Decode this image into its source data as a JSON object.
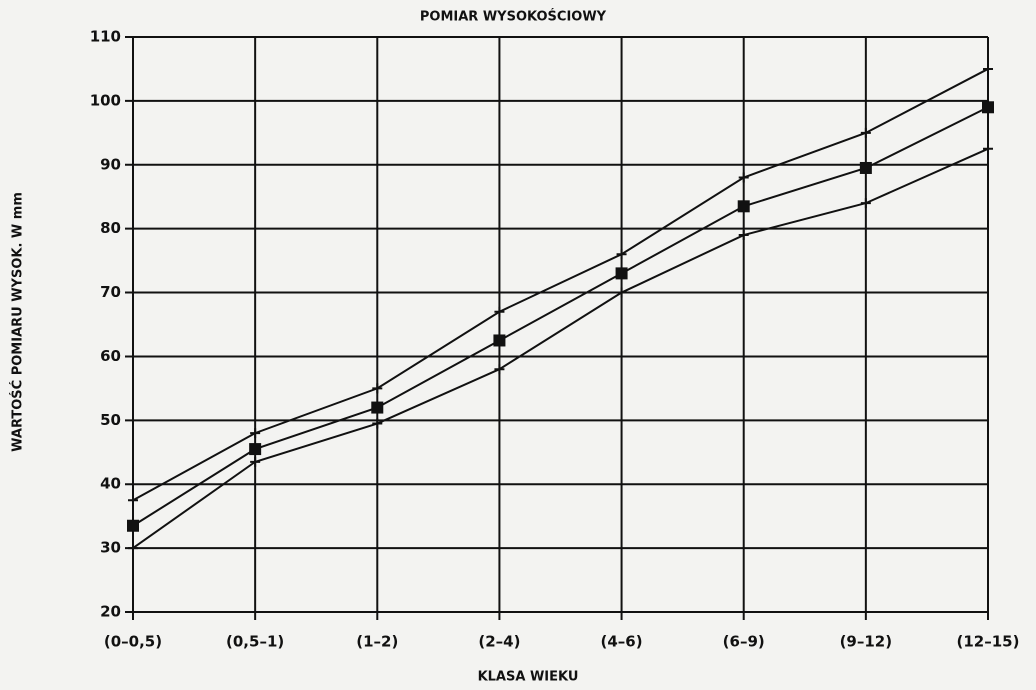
{
  "chart_data": {
    "type": "line",
    "title": "POMIAR WYSOKOŚCIOWY",
    "xlabel": "KLASA WIEKU",
    "ylabel": "WARTOŚĆ POMIARU WYSOK. W mm",
    "categories": [
      "(0–0,5)",
      "(0,5–1)",
      "(1–2)",
      "(2–4)",
      "(4–6)",
      "(6–9)",
      "(9–12)",
      "(12–15)"
    ],
    "series": [
      {
        "color": "#111111",
        "marker": "plus",
        "values": [
          37.5,
          48,
          55,
          67,
          76,
          88,
          95,
          105
        ]
      },
      {
        "color": "#111111",
        "marker": "square",
        "values": [
          33.5,
          45.5,
          52,
          62.5,
          73,
          83.5,
          89.5,
          99
        ]
      },
      {
        "color": "#111111",
        "marker": "plus",
        "values": [
          30,
          43.5,
          49.5,
          58,
          70,
          79,
          84,
          92.5
        ]
      }
    ],
    "ylim": [
      20,
      110
    ],
    "yticks": [
      20,
      30,
      40,
      50,
      60,
      70,
      80,
      90,
      100,
      110
    ],
    "grid": true
  }
}
